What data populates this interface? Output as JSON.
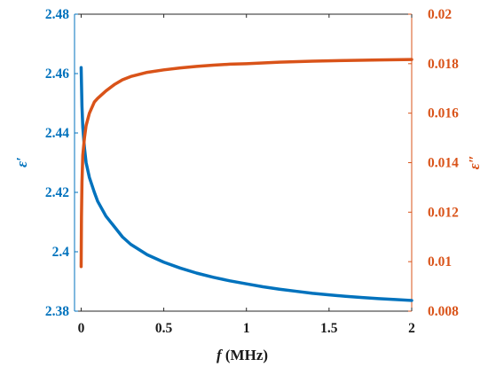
{
  "chart_data": {
    "type": "line",
    "title": "",
    "xlabel_italic": "f",
    "xlabel_unit": " (MHz)",
    "ylabel_left": "ε′",
    "ylabel_right": "ε″",
    "xlim": [
      -0.04,
      2
    ],
    "ylim_left": [
      2.38,
      2.48
    ],
    "ylim_right": [
      0.008,
      0.02
    ],
    "x_ticks": [
      "0",
      "0.5",
      "1",
      "1.5",
      "2"
    ],
    "y_left_ticks": [
      "2.38",
      "2.4",
      "2.42",
      "2.44",
      "2.46",
      "2.48"
    ],
    "y_right_ticks": [
      "0.008",
      "0.01",
      "0.012",
      "0.014",
      "0.016",
      "0.018",
      "0.02"
    ],
    "grid": false,
    "legend": "none",
    "colors": {
      "left": "#0072BD",
      "right": "#D95319",
      "axis_x": "#262626"
    },
    "series": [
      {
        "axis": "left",
        "x": [
          0,
          0.005,
          0.01,
          0.02,
          0.03,
          0.05,
          0.08,
          0.1,
          0.15,
          0.2,
          0.25,
          0.3,
          0.4,
          0.5,
          0.6,
          0.7,
          0.8,
          0.9,
          1.0,
          1.1,
          1.2,
          1.3,
          1.4,
          1.5,
          1.6,
          1.7,
          1.8,
          1.9,
          2.0
        ],
        "values": [
          2.462,
          2.449,
          2.442,
          2.435,
          2.43,
          2.425,
          2.42,
          2.417,
          2.412,
          2.4085,
          2.405,
          2.4025,
          2.399,
          2.3965,
          2.3945,
          2.3928,
          2.3914,
          2.3902,
          2.3892,
          2.3882,
          2.3874,
          2.3867,
          2.386,
          2.3855,
          2.385,
          2.3846,
          2.3842,
          2.3839,
          2.3836
        ]
      },
      {
        "axis": "right",
        "x": [
          0,
          0.002,
          0.005,
          0.01,
          0.02,
          0.03,
          0.05,
          0.08,
          0.1,
          0.15,
          0.2,
          0.25,
          0.3,
          0.4,
          0.5,
          0.6,
          0.7,
          0.8,
          0.9,
          1.0,
          1.2,
          1.4,
          1.6,
          1.8,
          2.0
        ],
        "values": [
          0.0098,
          0.0118,
          0.0132,
          0.0143,
          0.015,
          0.0155,
          0.016,
          0.01645,
          0.0166,
          0.0169,
          0.01715,
          0.01735,
          0.01748,
          0.01765,
          0.01775,
          0.01783,
          0.01789,
          0.01794,
          0.01798,
          0.018,
          0.01806,
          0.0181,
          0.01813,
          0.01815,
          0.01817
        ]
      }
    ]
  }
}
